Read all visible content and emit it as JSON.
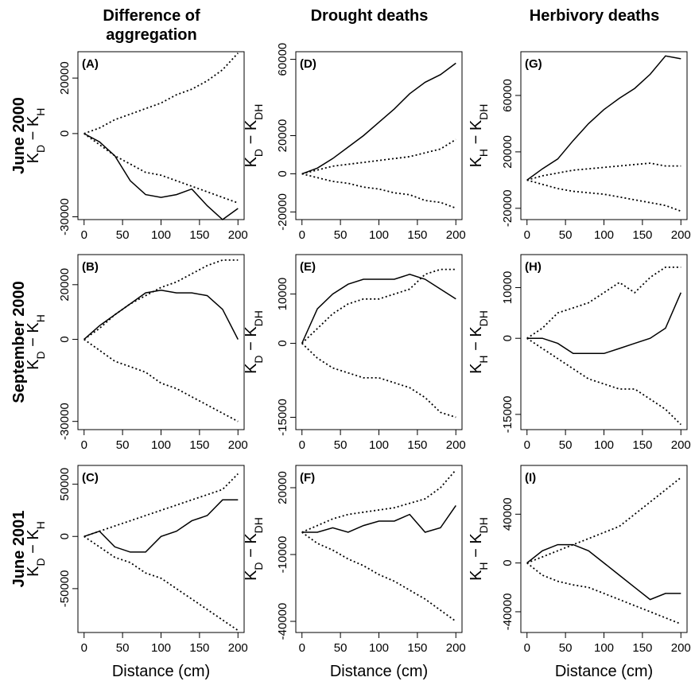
{
  "chart_data": [
    {
      "type": "line",
      "label": "(A)",
      "title": [
        "Difference of",
        "aggregation"
      ],
      "row_label": "June 2000",
      "ylabel": [
        "K",
        "D",
        " − K",
        "H"
      ],
      "x": [
        0,
        20,
        40,
        60,
        80,
        100,
        120,
        140,
        160,
        180,
        200
      ],
      "xlim": [
        -8,
        208
      ],
      "xticks": [
        0,
        50,
        100,
        150,
        200
      ],
      "ylim": [
        -31000,
        29500
      ],
      "yticks": [
        -30000,
        0,
        20000
      ],
      "series": [
        {
          "color": "#000",
          "dash": "solid",
          "values": [
            0,
            -3000,
            -8000,
            -17000,
            -22000,
            -23000,
            -22000,
            -20000,
            -26000,
            -31000,
            -27000
          ]
        },
        {
          "color": "#000",
          "dash": "dotted",
          "values": [
            0,
            2000,
            5000,
            7000,
            9000,
            11000,
            14000,
            16000,
            19000,
            23000,
            29000
          ]
        },
        {
          "color": "#000",
          "dash": "dotted",
          "values": [
            0,
            -4000,
            -8000,
            -11000,
            -14000,
            -15000,
            -17000,
            -19000,
            -21000,
            -23000,
            -25000
          ]
        }
      ]
    },
    {
      "type": "line",
      "label": "(B)",
      "row_label": "September 2000",
      "ylabel": [
        "K",
        "D",
        " − K",
        "H"
      ],
      "x": [
        0,
        20,
        40,
        60,
        80,
        100,
        120,
        140,
        160,
        180,
        200
      ],
      "xlim": [
        -8,
        208
      ],
      "xticks": [
        0,
        50,
        100,
        150,
        200
      ],
      "ylim": [
        -33000,
        31000
      ],
      "yticks": [
        -30000,
        0,
        20000
      ],
      "series": [
        {
          "color": "#000",
          "dash": "solid",
          "values": [
            0,
            5000,
            9000,
            13000,
            17000,
            18000,
            17000,
            17000,
            16000,
            11000,
            0
          ]
        },
        {
          "color": "#000",
          "dash": "dotted",
          "values": [
            0,
            4000,
            9000,
            13000,
            16000,
            19000,
            21000,
            24000,
            27000,
            29000,
            29000
          ]
        },
        {
          "color": "#000",
          "dash": "dotted",
          "values": [
            0,
            -4000,
            -8000,
            -10000,
            -12000,
            -16000,
            -18000,
            -21000,
            -24000,
            -27000,
            -30000
          ]
        }
      ]
    },
    {
      "type": "line",
      "label": "(C)",
      "row_label": "June 2001",
      "ylabel": [
        "K",
        "D",
        " − K",
        "H"
      ],
      "xlabel": "Distance (cm)",
      "x": [
        0,
        20,
        40,
        60,
        80,
        100,
        120,
        140,
        160,
        180,
        200
      ],
      "xlim": [
        -8,
        208
      ],
      "xticks": [
        0,
        50,
        100,
        150,
        200
      ],
      "ylim": [
        -92000,
        68000
      ],
      "yticks": [
        -50000,
        0,
        50000
      ],
      "series": [
        {
          "color": "#000",
          "dash": "solid",
          "values": [
            0,
            5000,
            -10000,
            -15000,
            -15000,
            0,
            5000,
            15000,
            20000,
            35000,
            35000
          ]
        },
        {
          "color": "#000",
          "dash": "dotted",
          "values": [
            0,
            5000,
            10000,
            15000,
            20000,
            25000,
            30000,
            35000,
            40000,
            45000,
            60000
          ]
        },
        {
          "color": "#000",
          "dash": "dotted",
          "values": [
            0,
            -10000,
            -20000,
            -25000,
            -35000,
            -40000,
            -50000,
            -60000,
            -70000,
            -80000,
            -90000
          ]
        }
      ]
    },
    {
      "type": "line",
      "label": "(D)",
      "title": [
        "Drought deaths"
      ],
      "ylabel": [
        "K",
        "D",
        " − K",
        "DH"
      ],
      "x": [
        0,
        20,
        40,
        60,
        80,
        100,
        120,
        140,
        160,
        180,
        200
      ],
      "xlim": [
        -8,
        208
      ],
      "xticks": [
        0,
        50,
        100,
        150,
        200
      ],
      "ylim": [
        -24000,
        64000
      ],
      "yticks": [
        -20000,
        0,
        20000,
        60000
      ],
      "series": [
        {
          "color": "#000",
          "dash": "solid",
          "values": [
            0,
            3000,
            8000,
            14000,
            20000,
            27000,
            34000,
            42000,
            48000,
            52000,
            58000
          ]
        },
        {
          "color": "#000",
          "dash": "dotted",
          "values": [
            0,
            2000,
            4000,
            5000,
            6000,
            7000,
            8000,
            9000,
            11000,
            13000,
            18000
          ]
        },
        {
          "color": "#000",
          "dash": "dotted",
          "values": [
            0,
            -2000,
            -4000,
            -5000,
            -7000,
            -8000,
            -10000,
            -11000,
            -14000,
            -15000,
            -18000
          ]
        }
      ]
    },
    {
      "type": "line",
      "label": "(E)",
      "ylabel": [
        "K",
        "D",
        " − K",
        "DH"
      ],
      "x": [
        0,
        20,
        40,
        60,
        80,
        100,
        120,
        140,
        160,
        180,
        200
      ],
      "xlim": [
        -8,
        208
      ],
      "xticks": [
        0,
        50,
        100,
        150,
        200
      ],
      "ylim": [
        -17500,
        18000
      ],
      "yticks": [
        -15000,
        0,
        10000
      ],
      "series": [
        {
          "color": "#000",
          "dash": "solid",
          "values": [
            0,
            7000,
            10000,
            12000,
            13000,
            13000,
            13000,
            14000,
            13000,
            11000,
            9000
          ]
        },
        {
          "color": "#000",
          "dash": "dotted",
          "values": [
            0,
            3000,
            6000,
            8000,
            9000,
            9000,
            10000,
            11000,
            14000,
            15000,
            15000
          ]
        },
        {
          "color": "#000",
          "dash": "dotted",
          "values": [
            0,
            -3000,
            -5000,
            -6000,
            -7000,
            -7000,
            -8000,
            -9000,
            -11000,
            -14000,
            -15000
          ]
        }
      ]
    },
    {
      "type": "line",
      "label": "(F)",
      "ylabel": [
        "K",
        "D",
        " − K",
        "DH"
      ],
      "xlabel": "Distance (cm)",
      "x": [
        0,
        20,
        40,
        60,
        80,
        100,
        120,
        140,
        160,
        180,
        200
      ],
      "xlim": [
        -8,
        208
      ],
      "xticks": [
        0,
        50,
        100,
        150,
        200
      ],
      "ylim": [
        -45000,
        30000
      ],
      "yticks": [
        -40000,
        -10000,
        20000
      ],
      "series": [
        {
          "color": "#000",
          "dash": "solid",
          "values": [
            0,
            0,
            2000,
            0,
            3000,
            5000,
            5000,
            8000,
            0,
            2000,
            12000
          ]
        },
        {
          "color": "#000",
          "dash": "dotted",
          "values": [
            0,
            3000,
            6000,
            8000,
            9000,
            10000,
            11000,
            13000,
            15000,
            20000,
            28000
          ]
        },
        {
          "color": "#000",
          "dash": "dotted",
          "values": [
            0,
            -5000,
            -8000,
            -12000,
            -15000,
            -19000,
            -22000,
            -26000,
            -30000,
            -35000,
            -40000
          ]
        }
      ]
    },
    {
      "type": "line",
      "label": "(G)",
      "title": [
        "Herbivory deaths"
      ],
      "ylabel": [
        "K",
        "H",
        " − K",
        "DH"
      ],
      "x": [
        0,
        20,
        40,
        60,
        80,
        100,
        120,
        140,
        160,
        180,
        200
      ],
      "xlim": [
        -8,
        208
      ],
      "xticks": [
        0,
        50,
        100,
        150,
        200
      ],
      "ylim": [
        -28000,
        91000
      ],
      "yticks": [
        -20000,
        20000,
        60000
      ],
      "series": [
        {
          "color": "#000",
          "dash": "solid",
          "values": [
            0,
            8000,
            15000,
            28000,
            40000,
            50000,
            58000,
            65000,
            75000,
            88000,
            86000
          ]
        },
        {
          "color": "#000",
          "dash": "dotted",
          "values": [
            0,
            3000,
            5000,
            7000,
            8000,
            9000,
            10000,
            11000,
            12000,
            10000,
            10000
          ]
        },
        {
          "color": "#000",
          "dash": "dotted",
          "values": [
            0,
            -3000,
            -6000,
            -8000,
            -9000,
            -10000,
            -12000,
            -14000,
            -16000,
            -18000,
            -22000
          ]
        }
      ]
    },
    {
      "type": "line",
      "label": "(H)",
      "ylabel": [
        "K",
        "H",
        " − K",
        "DH"
      ],
      "x": [
        0,
        20,
        40,
        60,
        80,
        100,
        120,
        140,
        160,
        180,
        200
      ],
      "xlim": [
        -8,
        208
      ],
      "xticks": [
        0,
        50,
        100,
        150,
        200
      ],
      "ylim": [
        -18000,
        16500
      ],
      "yticks": [
        -15000,
        0,
        10000
      ],
      "series": [
        {
          "color": "#000",
          "dash": "solid",
          "values": [
            0,
            0,
            -1000,
            -3000,
            -3000,
            -3000,
            -2000,
            -1000,
            0,
            2000,
            9000
          ]
        },
        {
          "color": "#000",
          "dash": "dotted",
          "values": [
            0,
            2000,
            5000,
            6000,
            7000,
            9000,
            11000,
            9000,
            12000,
            14000,
            14000
          ]
        },
        {
          "color": "#000",
          "dash": "dotted",
          "values": [
            0,
            -2000,
            -4000,
            -6000,
            -8000,
            -9000,
            -10000,
            -10000,
            -12000,
            -14000,
            -17000
          ]
        }
      ]
    },
    {
      "type": "line",
      "label": "(I)",
      "ylabel": [
        "K",
        "H",
        " − K",
        "DH"
      ],
      "xlabel": "Distance (cm)",
      "x": [
        0,
        20,
        40,
        60,
        80,
        100,
        120,
        140,
        160,
        180,
        200
      ],
      "xlim": [
        -8,
        208
      ],
      "xticks": [
        0,
        50,
        100,
        150,
        200
      ],
      "ylim": [
        -57000,
        80000
      ],
      "yticks": [
        -40000,
        0,
        40000
      ],
      "series": [
        {
          "color": "#000",
          "dash": "solid",
          "values": [
            0,
            10000,
            15000,
            15000,
            10000,
            0,
            -10000,
            -20000,
            -30000,
            -25000,
            -25000
          ]
        },
        {
          "color": "#000",
          "dash": "dotted",
          "values": [
            0,
            5000,
            10000,
            15000,
            20000,
            25000,
            30000,
            40000,
            50000,
            60000,
            70000
          ]
        },
        {
          "color": "#000",
          "dash": "dotted",
          "values": [
            0,
            -10000,
            -15000,
            -18000,
            -20000,
            -25000,
            -30000,
            -35000,
            -40000,
            -45000,
            -50000
          ]
        }
      ]
    }
  ]
}
